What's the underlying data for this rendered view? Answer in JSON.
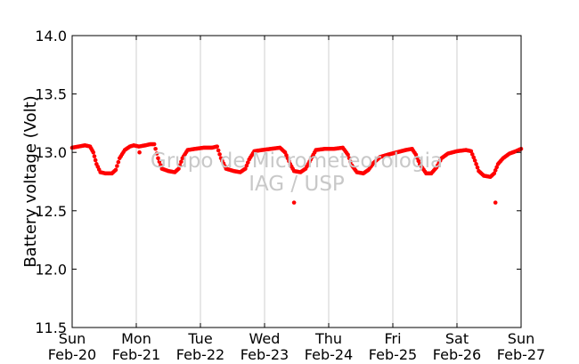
{
  "chart_data": {
    "type": "scatter",
    "ylabel": "Battery voltage (Volt)",
    "ylim": [
      11.5,
      14.0
    ],
    "yticks": [
      "11.5",
      "12.0",
      "12.5",
      "13.0",
      "13.5",
      "14.0"
    ],
    "xlim": [
      "2013-02-20",
      "2013-02-27"
    ],
    "xticks": [
      {
        "day": "Sun",
        "date": "Feb-20"
      },
      {
        "day": "Mon",
        "date": "Feb-21"
      },
      {
        "day": "Tue",
        "date": "Feb-22"
      },
      {
        "day": "Wed",
        "date": "Feb-23"
      },
      {
        "day": "Thu",
        "date": "Feb-24"
      },
      {
        "day": "Fri",
        "date": "Feb-25"
      },
      {
        "day": "Sat",
        "date": "Feb-26"
      },
      {
        "day": "Sun",
        "date": "Feb-27"
      }
    ],
    "grid": "vertical",
    "series": [
      {
        "color": "#ff0000",
        "x_unit": "days since Feb-20 00:00",
        "points": [
          [
            0.0,
            13.04
          ],
          [
            0.1,
            13.05
          ],
          [
            0.2,
            13.06
          ],
          [
            0.28,
            13.05
          ],
          [
            0.33,
            13.0
          ],
          [
            0.38,
            12.9
          ],
          [
            0.44,
            12.83
          ],
          [
            0.52,
            12.82
          ],
          [
            0.62,
            12.82
          ],
          [
            0.68,
            12.85
          ],
          [
            0.74,
            12.95
          ],
          [
            0.82,
            13.02
          ],
          [
            0.9,
            13.05
          ],
          [
            0.96,
            13.06
          ],
          [
            1.04,
            13.05
          ],
          [
            1.14,
            13.06
          ],
          [
            1.22,
            13.07
          ],
          [
            1.28,
            13.07
          ],
          [
            1.34,
            12.95
          ],
          [
            1.4,
            12.86
          ],
          [
            1.5,
            12.84
          ],
          [
            1.6,
            12.83
          ],
          [
            1.66,
            12.86
          ],
          [
            1.72,
            12.95
          ],
          [
            1.8,
            13.02
          ],
          [
            1.92,
            13.03
          ],
          [
            2.05,
            13.04
          ],
          [
            2.18,
            13.04
          ],
          [
            2.26,
            13.05
          ],
          [
            2.32,
            12.95
          ],
          [
            2.4,
            12.86
          ],
          [
            2.52,
            12.84
          ],
          [
            2.62,
            12.83
          ],
          [
            2.7,
            12.86
          ],
          [
            2.76,
            12.94
          ],
          [
            2.84,
            13.01
          ],
          [
            2.96,
            13.02
          ],
          [
            3.1,
            13.03
          ],
          [
            3.24,
            13.04
          ],
          [
            3.32,
            13.0
          ],
          [
            3.4,
            12.9
          ],
          [
            3.46,
            12.84
          ],
          [
            3.56,
            12.83
          ],
          [
            3.64,
            12.86
          ],
          [
            3.72,
            12.94
          ],
          [
            3.8,
            13.02
          ],
          [
            3.94,
            13.03
          ],
          [
            4.08,
            13.03
          ],
          [
            4.22,
            13.04
          ],
          [
            4.3,
            12.98
          ],
          [
            4.36,
            12.89
          ],
          [
            4.44,
            12.83
          ],
          [
            4.54,
            12.82
          ],
          [
            4.62,
            12.85
          ],
          [
            4.7,
            12.91
          ],
          [
            4.8,
            12.96
          ],
          [
            4.92,
            12.98
          ],
          [
            5.06,
            13.0
          ],
          [
            5.2,
            13.02
          ],
          [
            5.3,
            13.03
          ],
          [
            5.36,
            12.98
          ],
          [
            5.42,
            12.9
          ],
          [
            5.52,
            12.82
          ],
          [
            5.6,
            12.82
          ],
          [
            5.68,
            12.87
          ],
          [
            5.76,
            12.95
          ],
          [
            5.86,
            12.99
          ],
          [
            6.0,
            13.01
          ],
          [
            6.14,
            13.02
          ],
          [
            6.22,
            13.01
          ],
          [
            6.28,
            12.93
          ],
          [
            6.34,
            12.84
          ],
          [
            6.42,
            12.8
          ],
          [
            6.52,
            12.79
          ],
          [
            6.58,
            12.82
          ],
          [
            6.64,
            12.9
          ],
          [
            6.72,
            12.95
          ],
          [
            6.82,
            12.99
          ],
          [
            6.92,
            13.01
          ],
          [
            7.0,
            13.03
          ]
        ],
        "outliers": [
          [
            1.05,
            13.0
          ],
          [
            3.46,
            12.57
          ],
          [
            6.6,
            12.57
          ]
        ]
      }
    ],
    "watermark": [
      "Grupo de Micrometeorologia",
      "IAG / USP"
    ]
  }
}
